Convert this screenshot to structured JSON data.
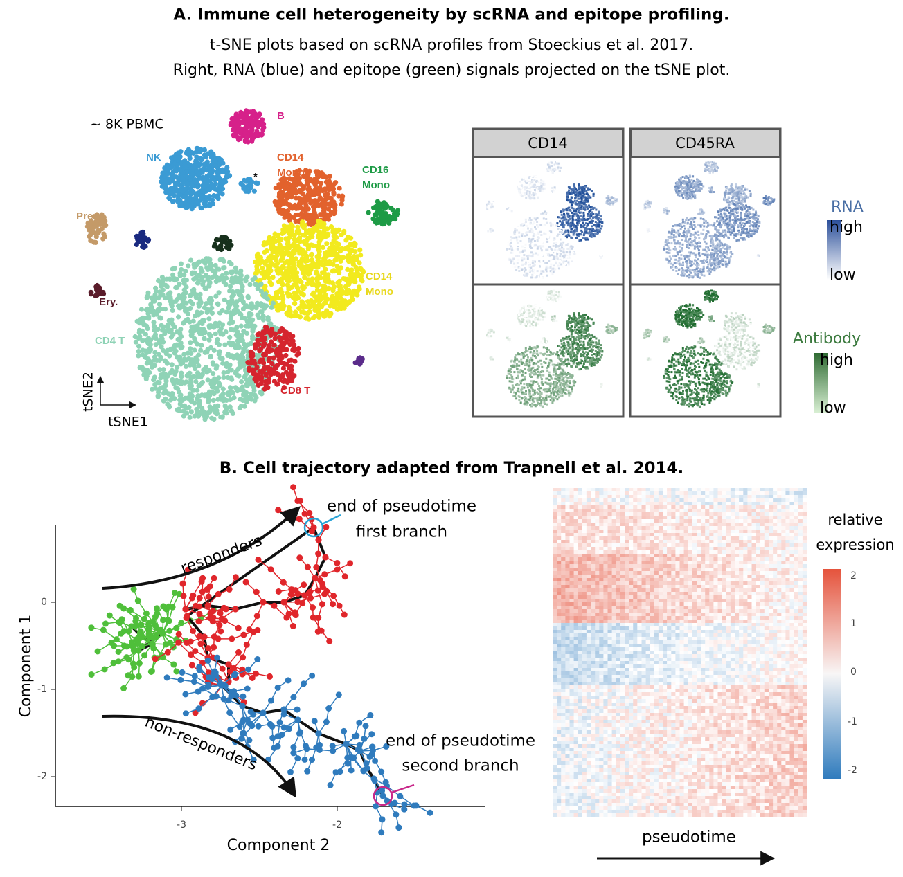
{
  "panel_a": {
    "title": "A. Immune cell heterogeneity by scRNA  and epitope profiling.",
    "subtitle_lines": [
      "t-SNE plots based on scRNA profiles from Stoeckius et al. 2017.",
      "Right, RNA (blue) and epitope (green) signals  projected on the tSNE plot."
    ],
    "tsne": {
      "sample_label": "~ 8K PBMC",
      "cluster_labels": [
        [
          "B"
        ],
        [
          "NK"
        ],
        [
          "CD14",
          "Mono"
        ],
        [
          "CD16",
          "Mono"
        ],
        [
          "Pre."
        ],
        [
          "Ery."
        ],
        [
          "CD14",
          "Mono"
        ],
        [
          "CD4 T"
        ],
        [
          "CD8 T"
        ],
        [
          "*"
        ]
      ],
      "x_axis": "tSNE1",
      "y_axis": "tSNE2"
    },
    "facets": [
      "CD14",
      "CD45RA"
    ],
    "rna_legend": {
      "title": "RNA",
      "high": "high",
      "low": "low"
    },
    "antibody_legend": {
      "title": "Antibody",
      "high": "high",
      "low": "low"
    }
  },
  "panel_b": {
    "title": "B.  Cell trajectory adapted from Trapnell et al. 2014.",
    "trajectory": {
      "x_axis": "Component 2",
      "y_axis": "Component 1",
      "xticks": [
        "-3",
        "-2"
      ],
      "yticks": [
        "0",
        "-1",
        "-2"
      ],
      "arrow_labels": [
        "responders",
        "non-responders"
      ],
      "first_end": [
        "end of pseudotime",
        "first branch"
      ],
      "second_end": [
        "end of pseudotime",
        "second branch"
      ]
    },
    "heatmap": {
      "legend_title_lines": [
        "relative",
        "expression"
      ],
      "legend_ticks": [
        "2",
        "1",
        "0",
        "-1",
        "-2"
      ],
      "x_axis": "pseudotime"
    }
  }
}
